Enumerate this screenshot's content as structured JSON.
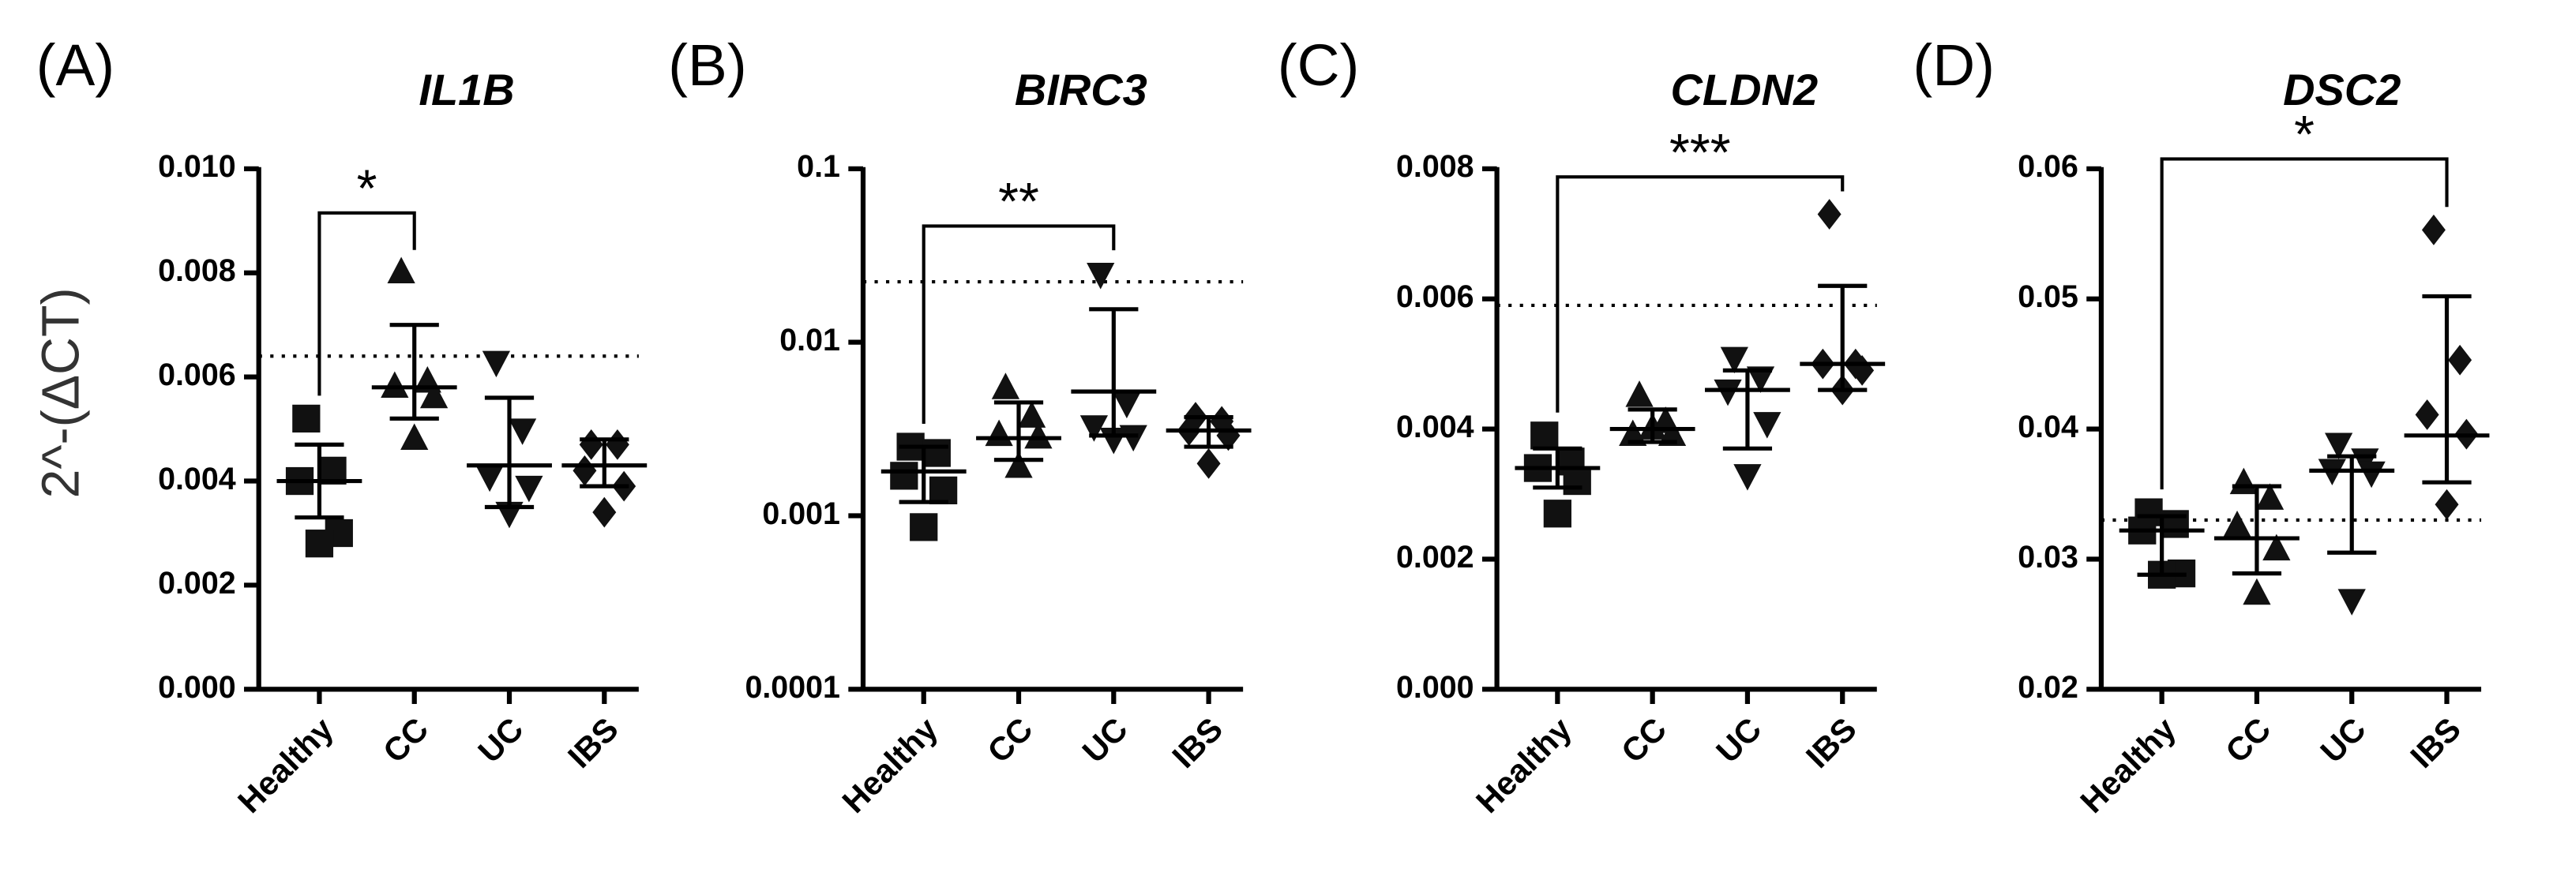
{
  "ylabel": "2^-(ΔCT)",
  "chart_data": [
    {
      "type": "dot",
      "panel": "(A)",
      "title": "IL1B",
      "categories": [
        "Healthy",
        "CC",
        "UC",
        "IBS"
      ],
      "markers": [
        "square",
        "triangle",
        "triangle-down",
        "diamond"
      ],
      "color": "#111111",
      "points": [
        [
          0.0052,
          0.0042,
          0.004,
          0.003,
          0.0028
        ],
        [
          0.008,
          0.0059,
          0.0058,
          0.0056,
          0.0048
        ],
        [
          0.0063,
          0.005,
          0.0041,
          0.0039,
          0.0034
        ],
        [
          0.0047,
          0.0047,
          0.0042,
          0.0039,
          0.0034
        ]
      ],
      "means": [
        0.004,
        0.0058,
        0.0043,
        0.0043
      ],
      "error_bars": [
        [
          0.0033,
          0.0047
        ],
        [
          0.0052,
          0.007
        ],
        [
          0.0035,
          0.0056
        ],
        [
          0.0039,
          0.0048
        ]
      ],
      "reference_line": 0.0064,
      "brackets": [
        {
          "from": "Healthy",
          "to": "CC",
          "label": "*"
        }
      ],
      "ylim": [
        0,
        0.01
      ],
      "yticks": [
        {
          "value": 0,
          "label": "0.000"
        },
        {
          "value": 0.002,
          "label": "0.002"
        },
        {
          "value": 0.004,
          "label": "0.004"
        },
        {
          "value": 0.006,
          "label": "0.006"
        },
        {
          "value": 0.008,
          "label": "0.008"
        },
        {
          "value": 0.01,
          "label": "0.010"
        }
      ]
    },
    {
      "type": "dot",
      "panel": "(B)",
      "title": "BIRC3",
      "log": true,
      "categories": [
        "Healthy",
        "CC",
        "UC",
        "IBS"
      ],
      "markers": [
        "square",
        "triangle",
        "triangle-down",
        "diamond"
      ],
      "color": "#111111",
      "points": [
        [
          0.0025,
          0.0023,
          0.0017,
          0.0014,
          0.00086
        ],
        [
          0.0054,
          0.0037,
          0.0029,
          0.0028,
          0.0019
        ],
        [
          0.025,
          0.0045,
          0.0033,
          0.0029,
          0.0028
        ],
        [
          0.0037,
          0.0035,
          0.0031,
          0.0029,
          0.002
        ]
      ],
      "means": [
        0.0018,
        0.0028,
        0.0052,
        0.0031
      ],
      "error_bars": [
        [
          0.0012,
          0.0025
        ],
        [
          0.0021,
          0.0045
        ],
        [
          0.0029,
          0.0155
        ],
        [
          0.0025,
          0.0037
        ]
      ],
      "reference_line": 0.0223,
      "brackets": [
        {
          "from": "Healthy",
          "to": "UC",
          "label": "**"
        }
      ],
      "ylim": [
        0.0001,
        0.1
      ],
      "yticks": [
        0.0001,
        0.001,
        0.01,
        0.1
      ]
    },
    {
      "type": "dot",
      "panel": "(C)",
      "title": "CLDN2",
      "categories": [
        "Healthy",
        "CC",
        "UC",
        "IBS"
      ],
      "markers": [
        "square",
        "triangle",
        "triangle-down",
        "diamond"
      ],
      "color": "#111111",
      "points": [
        [
          0.0039,
          0.0035,
          0.0034,
          0.0032,
          0.0027
        ],
        [
          0.0045,
          0.0041,
          0.0039,
          0.0039,
          0.004
        ],
        [
          0.0051,
          0.0048,
          0.0046,
          0.0041,
          0.0033
        ],
        [
          0.0073,
          0.005,
          0.005,
          0.0049,
          0.0046
        ]
      ],
      "means": [
        0.0034,
        0.004,
        0.0046,
        0.005
      ],
      "error_bars": [
        [
          0.0031,
          0.0037
        ],
        [
          0.0038,
          0.0043
        ],
        [
          0.0037,
          0.0049
        ],
        [
          0.0046,
          0.0062
        ]
      ],
      "reference_line": 0.0059,
      "brackets": [
        {
          "from": "Healthy",
          "to": "IBS",
          "label": "***"
        }
      ],
      "ylim": [
        0,
        0.008
      ],
      "yticks": [
        {
          "value": 0,
          "label": "0.000"
        },
        {
          "value": 0.002,
          "label": "0.002"
        },
        {
          "value": 0.004,
          "label": "0.004"
        },
        {
          "value": 0.006,
          "label": "0.006"
        },
        {
          "value": 0.008,
          "label": "0.008"
        }
      ]
    },
    {
      "type": "dot",
      "panel": "(D)",
      "title": "DSC2",
      "categories": [
        "Healthy",
        "CC",
        "UC",
        "IBS"
      ],
      "markers": [
        "square",
        "triangle",
        "triangle-down",
        "diamond"
      ],
      "color": "#111111",
      "points": [
        [
          0.0336,
          0.0327,
          0.0322,
          0.0289,
          0.0288
        ],
        [
          0.0358,
          0.0346,
          0.0325,
          0.0307,
          0.0273
        ],
        [
          0.0389,
          0.0377,
          0.0369,
          0.0367,
          0.0269
        ],
        [
          0.0553,
          0.0453,
          0.0411,
          0.0396,
          0.0342
        ]
      ],
      "means": [
        0.0322,
        0.0316,
        0.0368,
        0.0395
      ],
      "error_bars": [
        [
          0.0288,
          0.0333
        ],
        [
          0.0289,
          0.0356
        ],
        [
          0.0305,
          0.0379
        ],
        [
          0.0359,
          0.0502
        ]
      ],
      "reference_line": 0.033,
      "brackets": [
        {
          "from": "Healthy",
          "to": "IBS",
          "label": "*"
        }
      ],
      "ylim": [
        0.02,
        0.06
      ],
      "yticks": [
        0.02,
        0.03,
        0.04,
        0.05,
        0.06
      ]
    }
  ]
}
